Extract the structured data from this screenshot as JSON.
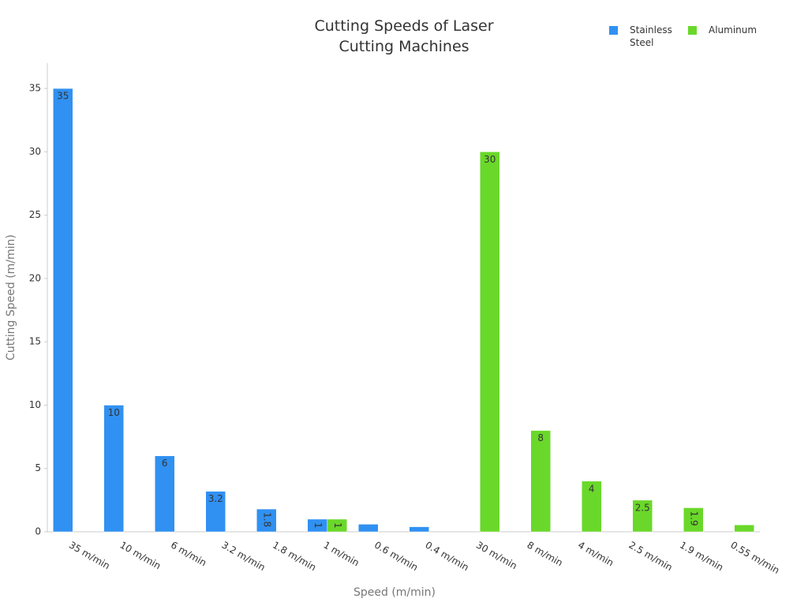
{
  "chart_data": {
    "type": "bar",
    "title": "Cutting Speeds of Laser Cutting Machines",
    "x_label": "Speed (m/min)",
    "y_label": "Cutting Speed (m/min)",
    "categories": [
      "35 m/min",
      "10 m/min",
      "6 m/min",
      "3.2 m/min",
      "1.8 m/min",
      "1 m/min",
      "0.6 m/min",
      "0.4 m/min",
      "30 m/min",
      "8 m/min",
      "4 m/min",
      "2.5 m/min",
      "1.9 m/min",
      "0.55 m/min"
    ],
    "series": [
      {
        "name": "Stainless Steel",
        "color": "#3091f2",
        "values": [
          35,
          10,
          6,
          3.2,
          1.8,
          1,
          0.6,
          0.4,
          null,
          null,
          null,
          null,
          null,
          null
        ]
      },
      {
        "name": "Aluminum",
        "color": "#6ad82a",
        "values": [
          null,
          null,
          null,
          null,
          null,
          1,
          null,
          null,
          30,
          8,
          4,
          2.5,
          1.9,
          0.55
        ]
      }
    ],
    "ylim": [
      0,
      37
    ],
    "yticks": [
      0,
      5,
      10,
      15,
      20,
      25,
      30,
      35
    ],
    "legend": "top-right"
  }
}
